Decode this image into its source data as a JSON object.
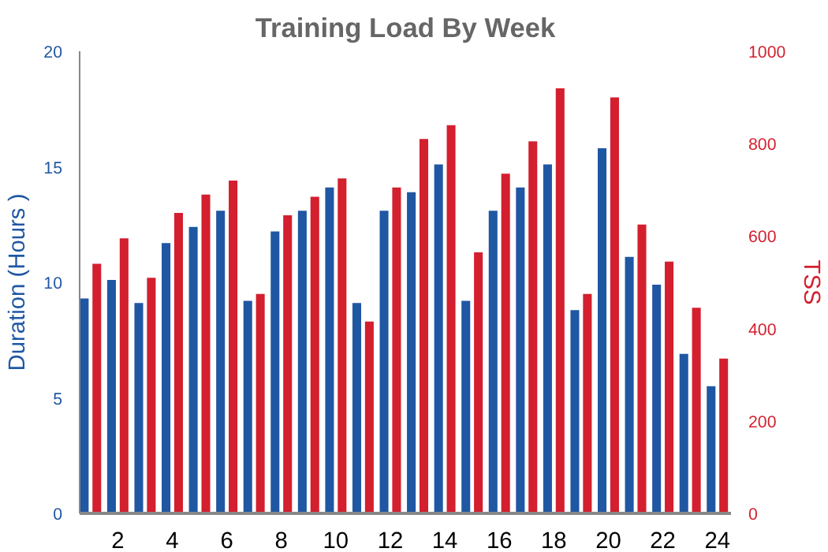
{
  "chart_data": {
    "type": "bar",
    "title": "Training Load By Week",
    "ylabel": "Duration (Hours )",
    "y2label": "TSS",
    "x": [
      1,
      2,
      3,
      4,
      5,
      6,
      7,
      8,
      9,
      10,
      11,
      12,
      13,
      14,
      15,
      16,
      17,
      18,
      19,
      20,
      21,
      22,
      23,
      24
    ],
    "xlim": [
      0.6,
      24.5
    ],
    "xticks": [
      2,
      4,
      6,
      8,
      10,
      12,
      14,
      16,
      18,
      20,
      22,
      24
    ],
    "ylim": [
      0,
      20
    ],
    "yticks": [
      0,
      5,
      10,
      15,
      20
    ],
    "y2lim": [
      0,
      1000
    ],
    "y2ticks": [
      0,
      200,
      400,
      600,
      800,
      1000
    ],
    "series": [
      {
        "color": "#1f57a3",
        "values": [
          9.3,
          10.1,
          9.1,
          11.7,
          12.4,
          13.1,
          9.2,
          12.2,
          13.1,
          14.1,
          9.1,
          13.1,
          13.9,
          15.1,
          9.2,
          13.1,
          14.1,
          15.1,
          8.8,
          15.8,
          11.1,
          9.9,
          6.9,
          5.5
        ]
      },
      {
        "color": "#d31f2e",
        "axis": "y2",
        "values": [
          540,
          595,
          510,
          650,
          690,
          720,
          475,
          645,
          685,
          725,
          415,
          705,
          810,
          840,
          565,
          735,
          805,
          920,
          475,
          900,
          625,
          545,
          445,
          335
        ]
      }
    ]
  }
}
